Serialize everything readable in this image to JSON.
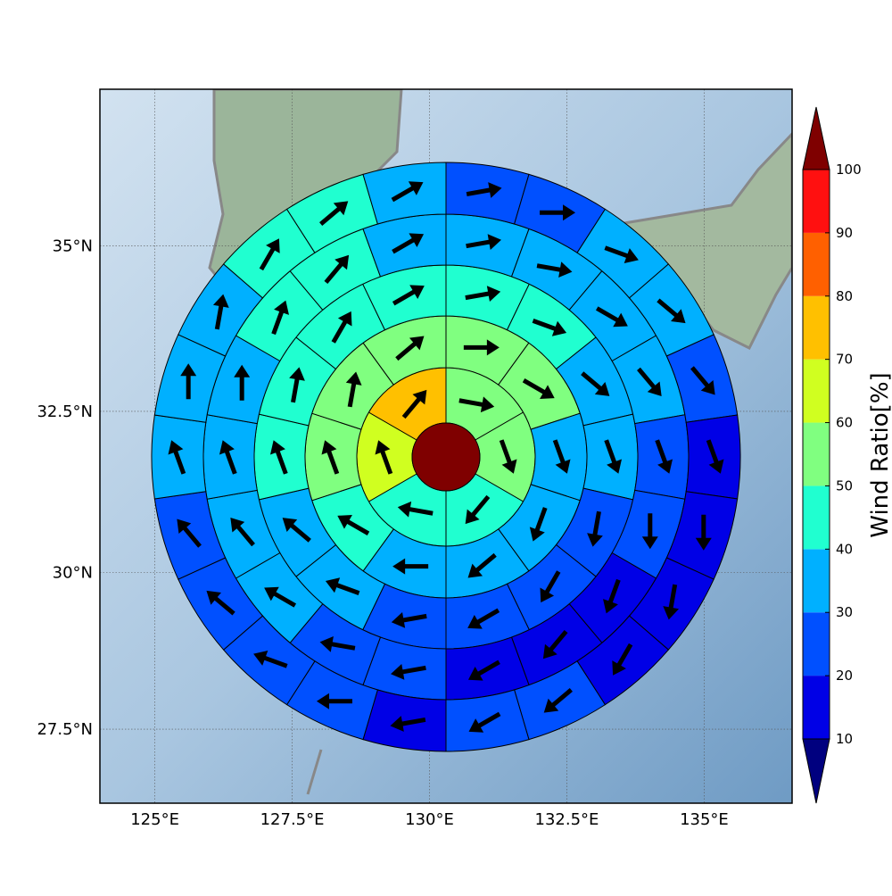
{
  "chart_data": {
    "type": "polar-grid",
    "xlim": [
      124,
      136.6
    ],
    "ylim": [
      26.3,
      37.3
    ],
    "xticks": [
      {
        "value": 125,
        "label": "125°E"
      },
      {
        "value": 127.5,
        "label": "127.5°E"
      },
      {
        "value": 130,
        "label": "130°E"
      },
      {
        "value": 132.5,
        "label": "132.5°E"
      },
      {
        "value": 135,
        "label": "135°E"
      }
    ],
    "yticks": [
      {
        "value": 27.5,
        "label": "27.5°N"
      },
      {
        "value": 30,
        "label": "30°N"
      },
      {
        "value": 32.5,
        "label": "32.5°N"
      },
      {
        "value": 35,
        "label": "35°N"
      }
    ],
    "grid": true,
    "center_value": 105,
    "rings": [
      {
        "values": [
          55,
          55,
          45,
          45,
          65,
          75
        ],
        "directions": [
          100,
          160,
          220,
          280,
          340,
          40
        ]
      },
      {
        "values": [
          55,
          55,
          35,
          35,
          35,
          35,
          45,
          55,
          55,
          55
        ],
        "directions": [
          90,
          120,
          160,
          200,
          230,
          270,
          300,
          340,
          10,
          50
        ]
      },
      {
        "values": [
          45,
          45,
          35,
          35,
          25,
          25,
          25,
          25,
          35,
          35,
          45,
          45,
          45,
          45
        ],
        "directions": [
          80,
          110,
          130,
          160,
          190,
          210,
          240,
          260,
          290,
          310,
          340,
          10,
          30,
          60
        ]
      },
      {
        "values": [
          35,
          35,
          35,
          35,
          25,
          25,
          15,
          15,
          15,
          25,
          25,
          35,
          35,
          35,
          35,
          45,
          45,
          35
        ],
        "directions": [
          80,
          100,
          120,
          140,
          160,
          180,
          200,
          220,
          240,
          260,
          280,
          300,
          320,
          340,
          0,
          20,
          40,
          60
        ]
      },
      {
        "values": [
          25,
          25,
          35,
          35,
          25,
          15,
          15,
          15,
          15,
          25,
          25,
          15,
          25,
          25,
          25,
          25,
          35,
          35,
          35,
          45,
          45,
          35
        ],
        "directions": [
          80,
          90,
          110,
          130,
          140,
          160,
          180,
          190,
          210,
          230,
          240,
          260,
          270,
          290,
          310,
          320,
          340,
          0,
          10,
          30,
          50,
          60
        ]
      }
    ],
    "colorbar": {
      "label": "Wind Ratio[%]",
      "ticks": [
        10,
        20,
        30,
        40,
        50,
        60,
        70,
        80,
        90,
        100
      ],
      "colors": [
        "#00007f",
        "#0000e6",
        "#0050ff",
        "#00b0ff",
        "#20ffd0",
        "#80ff80",
        "#d0ff20",
        "#ffc000",
        "#ff6000",
        "#ff1010",
        "#7f0000"
      ]
    }
  }
}
